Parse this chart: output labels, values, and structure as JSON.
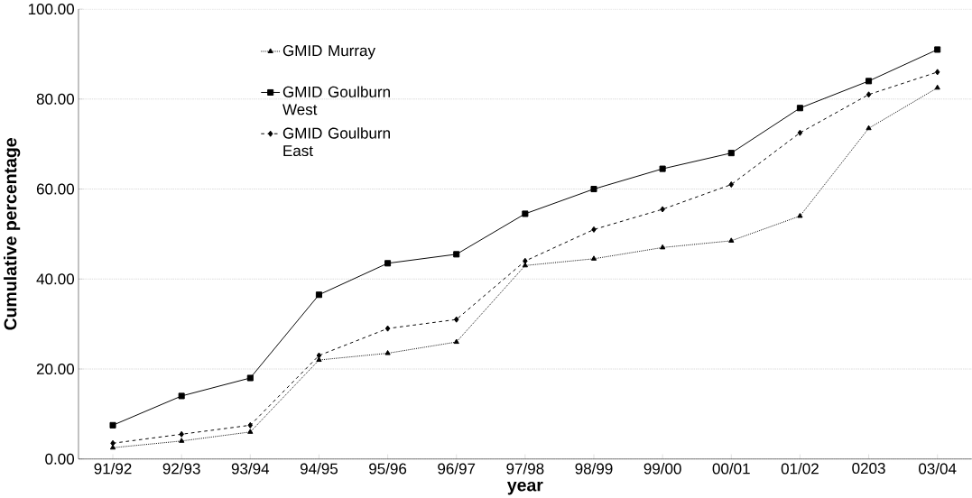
{
  "chart_data": {
    "type": "line",
    "xlabel": "year",
    "ylabel": "Cumulative percentage",
    "categories": [
      "91/92",
      "92/93",
      "93/94",
      "94/95",
      "95/96",
      "96/97",
      "97/98",
      "98/99",
      "99/00",
      "00/01",
      "01/02",
      "0203",
      "03/04"
    ],
    "series": [
      {
        "name": "GMID Murray",
        "color": "#000000",
        "line_style": "dotted",
        "marker": "triangle",
        "values": [
          2.5,
          4,
          6,
          22,
          23.5,
          26,
          43,
          44.5,
          47,
          48.5,
          54,
          73.5,
          82.5
        ]
      },
      {
        "name": "GMID Goulburn West",
        "color": "#000000",
        "line_style": "solid",
        "marker": "square",
        "values": [
          7.5,
          14,
          18,
          36.5,
          43.5,
          45.5,
          54.5,
          60,
          64.5,
          68,
          78,
          84,
          91
        ]
      },
      {
        "name": "GMID Goulburn East",
        "color": "#000000",
        "line_style": "dashed",
        "marker": "diamond",
        "values": [
          3.5,
          5.5,
          7.5,
          23,
          29,
          31,
          44,
          51,
          55.5,
          61,
          72.5,
          81,
          86
        ]
      }
    ],
    "ylim": [
      0,
      100
    ],
    "yticks": [
      {
        "value": 0,
        "label": "0.00"
      },
      {
        "value": 20,
        "label": "20.00"
      },
      {
        "value": 40,
        "label": "40.00"
      },
      {
        "value": 60,
        "label": "60.00"
      },
      {
        "value": 80,
        "label": "80.00"
      },
      {
        "value": 100,
        "label": "100.00"
      }
    ],
    "grid": "y",
    "legend": "top left"
  }
}
